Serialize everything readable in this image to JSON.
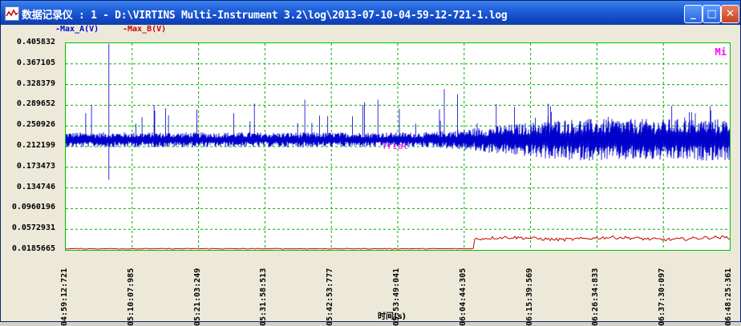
{
  "window": {
    "title": "数据记录仪 : 1 - D:\\VIRTINS Multi-Instrument 3.2\\log\\2013-07-10-04-59-12-721-1.log",
    "controls": {
      "minimize": "_",
      "maximize": "□",
      "close": "✕"
    }
  },
  "legend": [
    {
      "label": "-Max_A(V)",
      "color": "#0000cc"
    },
    {
      "label": "-Max_B(V)",
      "color": "#cc0000"
    }
  ],
  "plot": {
    "corner_label": "Mi",
    "watermark": "Trial",
    "background": "#ffffff",
    "grid_color": "#00b000"
  },
  "chart_data": {
    "type": "line",
    "xlabel": "时间(s)",
    "ylabel": "",
    "ylim": [
      0.0185665,
      0.405832
    ],
    "y_ticks": [
      "0.405832",
      "0.367105",
      "0.328379",
      "0.289652",
      "0.250926",
      "0.212199",
      "0.173473",
      "0.134746",
      "0.0960196",
      "0.0572931",
      "0.0185665"
    ],
    "x_ticks": [
      "04:59:12:721",
      "05:10:07:985",
      "05:21:03:249",
      "05:31:58:513",
      "05:42:53:777",
      "05:53:49:041",
      "06:04:44:305",
      "06:15:39:569",
      "06:26:34:833",
      "06:37:30:097",
      "06:48:25:361"
    ],
    "series": [
      {
        "name": "-Max_A(V)",
        "color": "#0000cc",
        "description": "noisy trace around 0.22–0.23 with sparse spikes; variability grows after 06:04:44",
        "base": 0.225,
        "noise_early": 0.01,
        "noise_late": 0.028,
        "spikes": [
          {
            "t": 0.065,
            "v": 0.405
          },
          {
            "t": 0.065,
            "v": 0.15
          },
          {
            "t": 0.36,
            "v": 0.3
          },
          {
            "t": 0.45,
            "v": 0.295
          },
          {
            "t": 0.47,
            "v": 0.3
          },
          {
            "t": 0.59,
            "v": 0.31
          },
          {
            "t": 0.57,
            "v": 0.32
          }
        ]
      },
      {
        "name": "-Max_B(V)",
        "color": "#cc0000",
        "description": "near 0.019 until ~06:06, then rises to ~0.040–0.045 with fluctuations",
        "base_early": 0.02,
        "step_t": 0.615,
        "base_late": 0.04
      }
    ]
  }
}
